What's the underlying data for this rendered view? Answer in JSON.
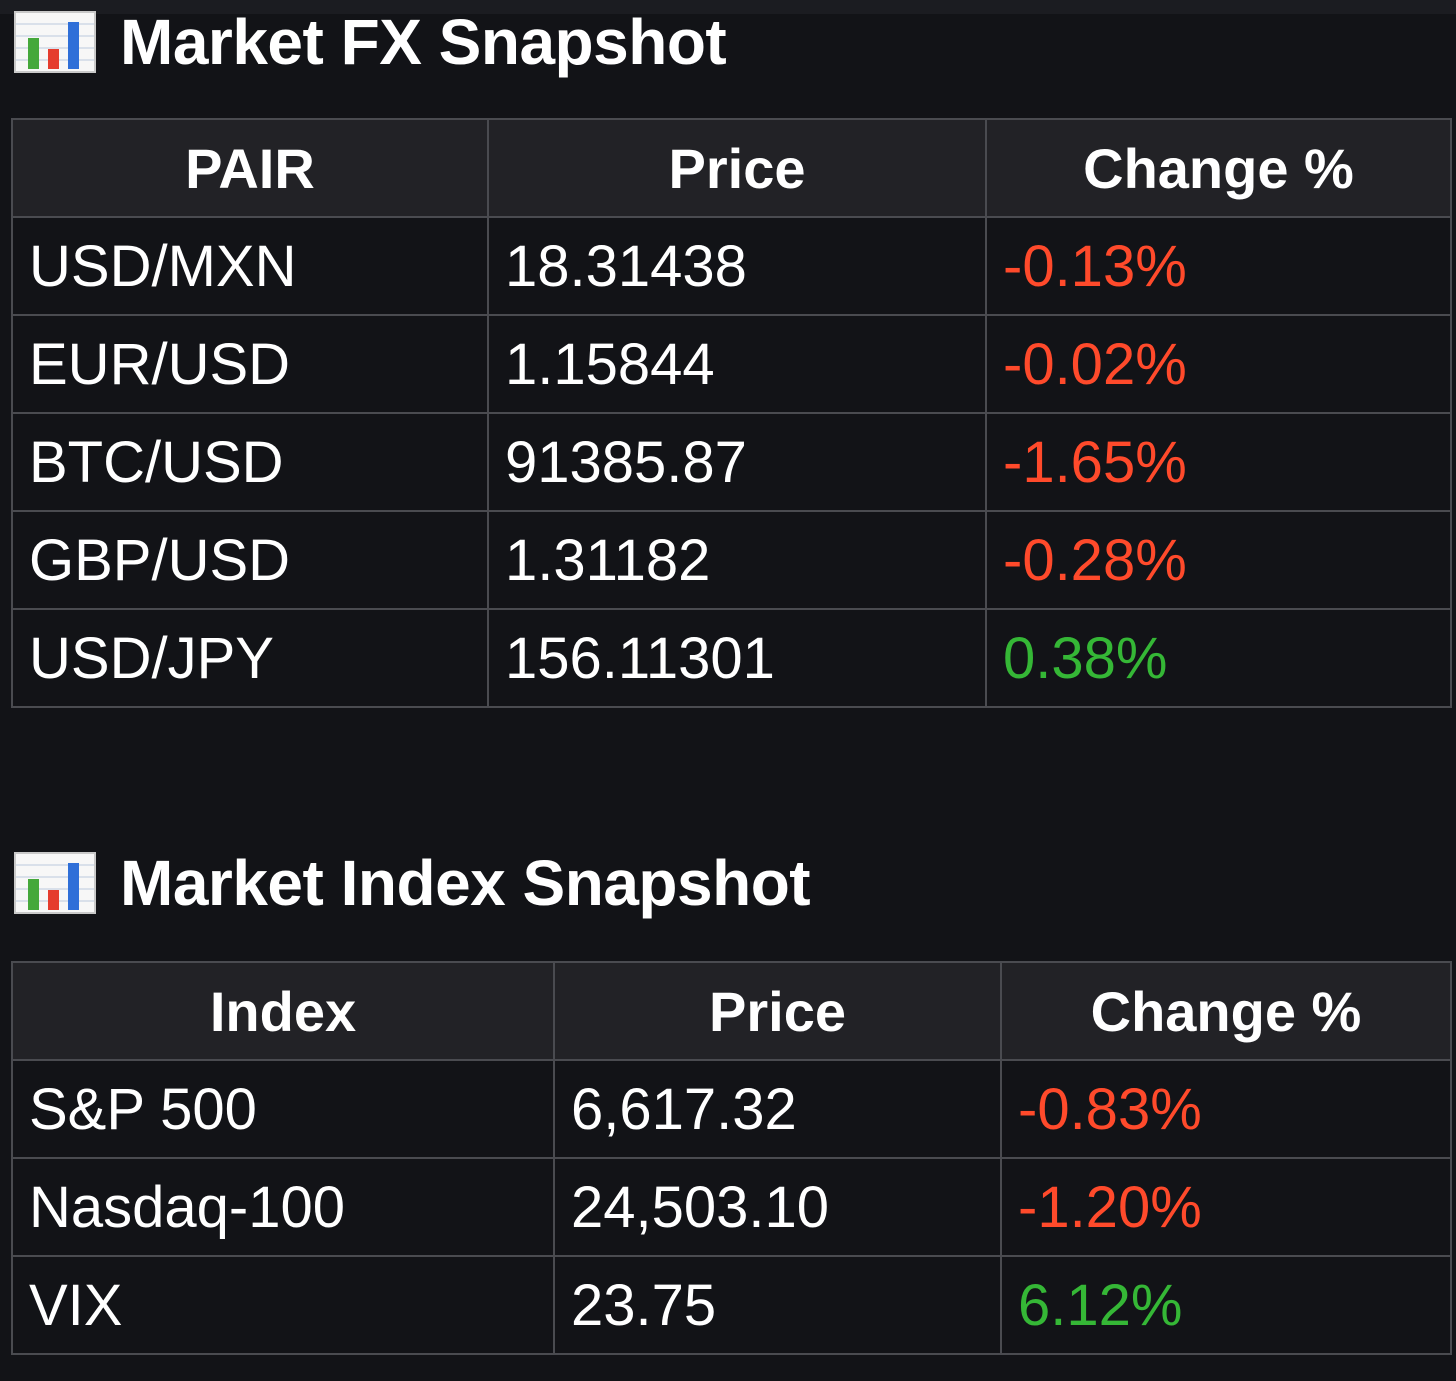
{
  "fx": {
    "title": "Market FX Snapshot",
    "icon": "bar-chart-icon",
    "headers": [
      "PAIR",
      "Price",
      "Change %"
    ],
    "rows": [
      {
        "pair": "USD/MXN",
        "price": "18.31438",
        "change": "-0.13%",
        "direction": "down"
      },
      {
        "pair": "EUR/USD",
        "price": "1.15844",
        "change": "-0.02%",
        "direction": "down"
      },
      {
        "pair": "BTC/USD",
        "price": "91385.87",
        "change": "-1.65%",
        "direction": "down"
      },
      {
        "pair": "GBP/USD",
        "price": "1.31182",
        "change": "-0.28%",
        "direction": "down"
      },
      {
        "pair": "USD/JPY",
        "price": "156.11301",
        "change": "0.38%",
        "direction": "up"
      }
    ]
  },
  "index": {
    "title": "Market Index Snapshot",
    "icon": "bar-chart-icon",
    "headers": [
      "Index",
      "Price",
      "Change %"
    ],
    "rows": [
      {
        "name": "S&P 500",
        "price": "6,617.32",
        "change": "-0.83%",
        "direction": "down"
      },
      {
        "name": "Nasdaq-100",
        "price": "24,503.10",
        "change": "-1.20%",
        "direction": "down"
      },
      {
        "name": "VIX",
        "price": "23.75",
        "change": "6.12%",
        "direction": "up"
      }
    ]
  },
  "colors": {
    "background": "#121317",
    "header_bg": "#222226",
    "border": "#4a4b50",
    "negative": "#ff4a2b",
    "positive": "#35b736"
  }
}
